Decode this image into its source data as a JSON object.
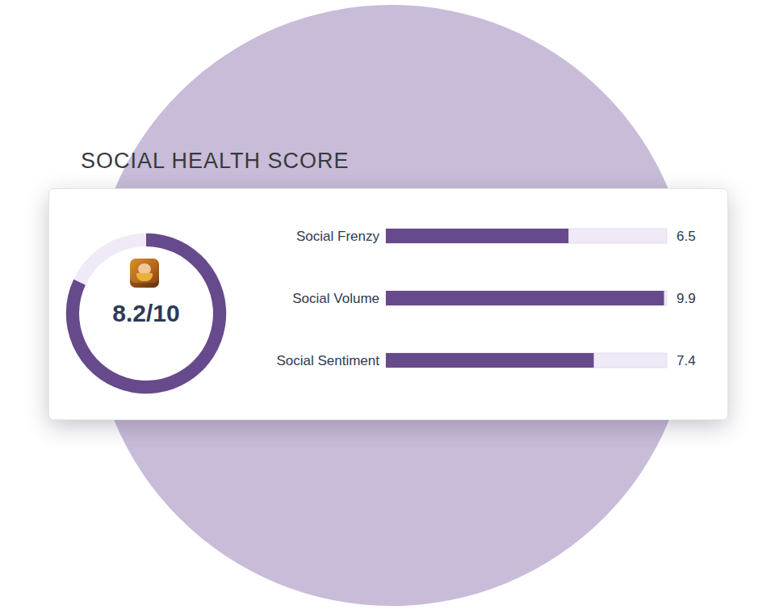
{
  "chart_data": [
    {
      "type": "gauge",
      "title": "SOCIAL HEALTH SCORE",
      "values": [
        8.2
      ],
      "value_labels": [
        "8.2/10"
      ],
      "ylim": [
        0,
        10
      ],
      "color": "#664a8b"
    },
    {
      "type": "bar",
      "orientation": "horizontal",
      "categories": [
        "Social Frenzy",
        "Social Volume",
        "Social Sentiment"
      ],
      "values": [
        6.5,
        9.9,
        7.4
      ],
      "xlim": [
        0,
        10
      ],
      "data_labels": true,
      "tick_labels": "y",
      "color": "#664a8b"
    }
  ]
}
